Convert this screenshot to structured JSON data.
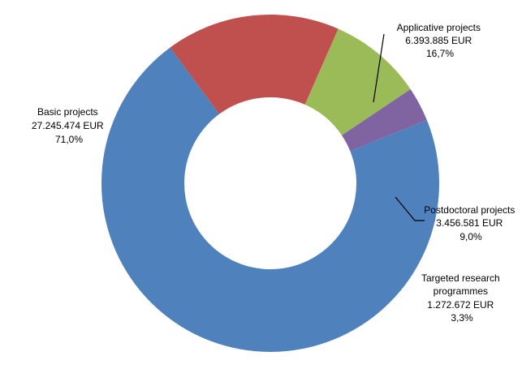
{
  "chart_data": {
    "type": "pie",
    "style": "donut",
    "slices": [
      {
        "name": "Basic projects",
        "amount": "27.245.474 EUR",
        "percent_label": "71,0%",
        "value": 71.0,
        "color": "#4F81BD"
      },
      {
        "name": "Applicative projects",
        "amount": "6.393.885 EUR",
        "percent_label": "16,7%",
        "value": 16.7,
        "color": "#C0504D"
      },
      {
        "name": "Postdoctoral projects",
        "amount": "3.456.581 EUR",
        "percent_label": "9,0%",
        "value": 9.0,
        "color": "#9BBB59"
      },
      {
        "name": "Targeted research programmes",
        "name_lines": [
          "Targeted research",
          "programmes"
        ],
        "amount": "1.272.672 EUR",
        "percent_label": "3,3%",
        "value": 3.3,
        "color": "#8064A2"
      }
    ],
    "legend": "none",
    "data_labels": "outside with leader lines"
  }
}
